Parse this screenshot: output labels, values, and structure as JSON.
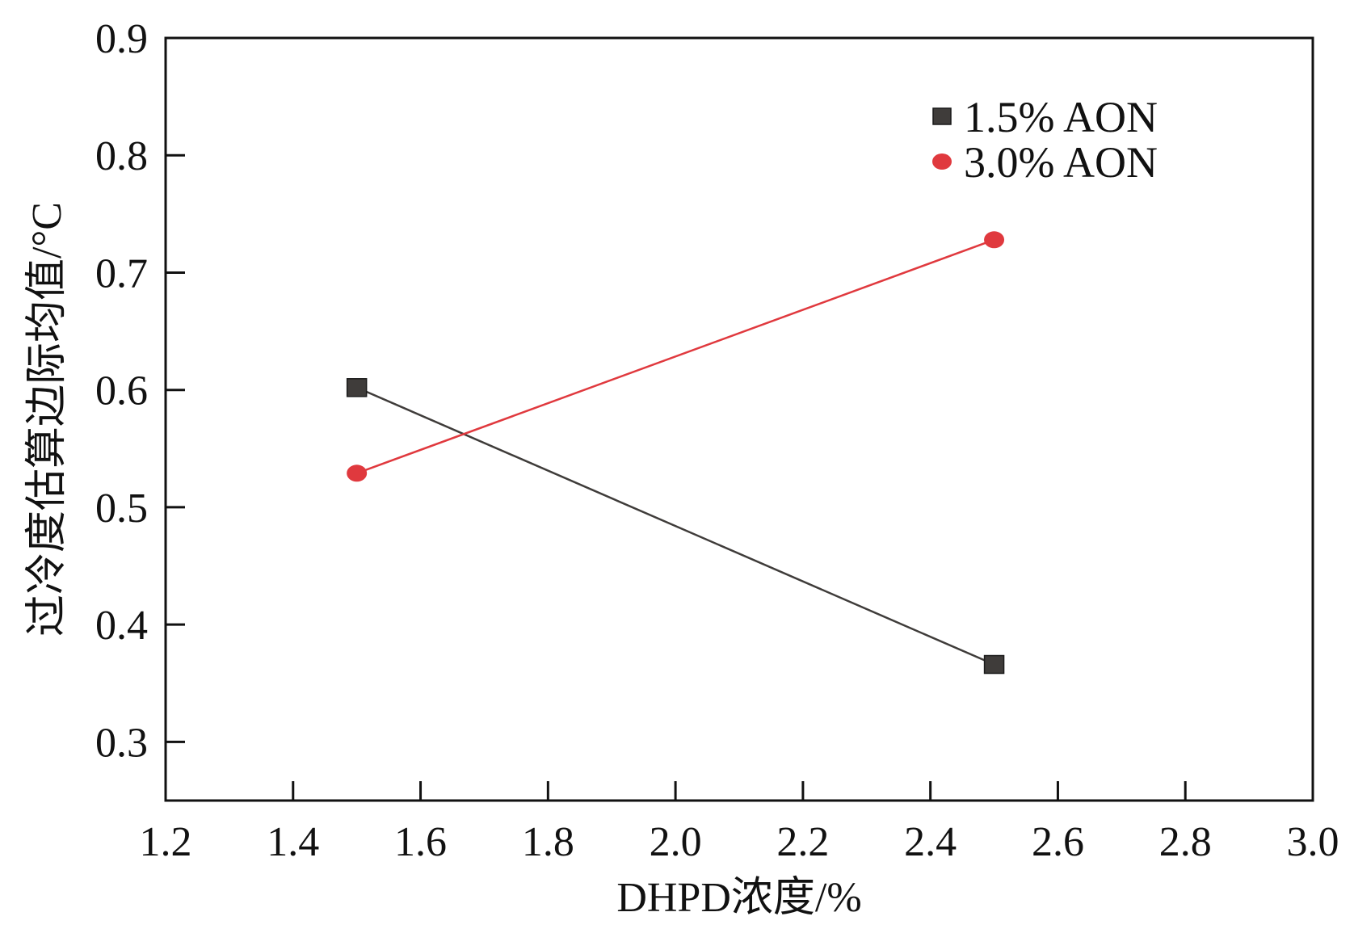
{
  "chart_data": {
    "type": "line",
    "title": "",
    "xlabel": "DHPD浓度/%",
    "ylabel": "过冷度估算边际均值/°C",
    "xlim": [
      1.2,
      3.0
    ],
    "ylim": [
      0.25,
      0.9
    ],
    "xticks": [
      "1.2",
      "1.4",
      "1.6",
      "1.8",
      "2.0",
      "2.2",
      "2.4",
      "2.6",
      "2.8",
      "3.0"
    ],
    "yticks": [
      "0.3",
      "0.4",
      "0.5",
      "0.6",
      "0.7",
      "0.8",
      "0.9"
    ],
    "grid": false,
    "legend_position": "top-right",
    "series": [
      {
        "name": "1.5% AON",
        "marker": "square",
        "color": "#3f3c3a",
        "x": [
          1.5,
          2.5
        ],
        "y": [
          0.602,
          0.366
        ]
      },
      {
        "name": "3.0% AON",
        "marker": "circle",
        "color": "#e0393e",
        "x": [
          1.5,
          2.5
        ],
        "y": [
          0.529,
          0.728
        ]
      }
    ]
  }
}
